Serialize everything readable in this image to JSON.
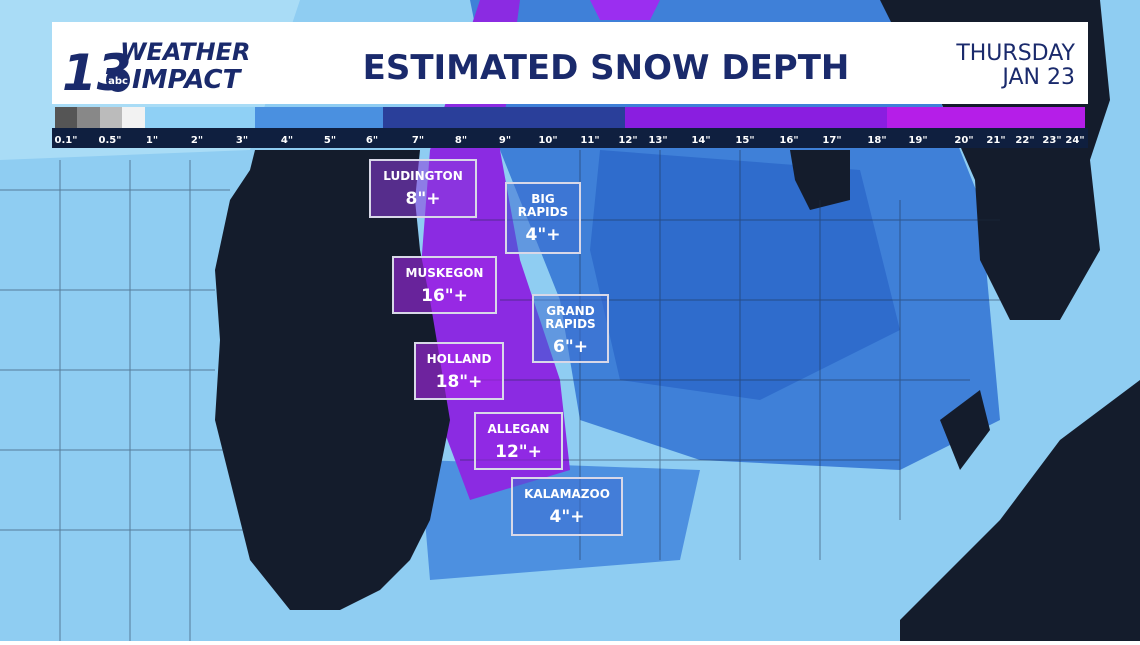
{
  "logo": {
    "number": "13",
    "line1": "WEATHER",
    "line2": "IMPACT",
    "network": "abc"
  },
  "header": {
    "title": "ESTIMATED SNOW DEPTH",
    "day": "THURSDAY",
    "date": "JAN 23"
  },
  "legend": {
    "labels": [
      "0.1\"",
      "0.5\"",
      "1\"",
      "2\"",
      "3\"",
      "4\"",
      "5\"",
      "6\"",
      "7\"",
      "8\"",
      "9\"",
      "10\"",
      "11\"",
      "12\"",
      "13\"",
      "14\"",
      "15\"",
      "16\"",
      "17\"",
      "18\"",
      "19\"",
      "20\"",
      "21\"",
      "22\"",
      "23\"",
      "24\""
    ]
  },
  "cities": [
    {
      "name": [
        "LUDINGTON"
      ],
      "depth": "8\"+"
    },
    {
      "name": [
        "BIG",
        "RAPIDS"
      ],
      "depth": "4\"+"
    },
    {
      "name": [
        "MUSKEGON"
      ],
      "depth": "16\"+"
    },
    {
      "name": [
        "GRAND",
        "RAPIDS"
      ],
      "depth": "6\"+"
    },
    {
      "name": [
        "HOLLAND"
      ],
      "depth": "18\"+"
    },
    {
      "name": [
        "ALLEGAN"
      ],
      "depth": "12\"+"
    },
    {
      "name": [
        "KALAMAZOO"
      ],
      "depth": "4\"+"
    }
  ]
}
